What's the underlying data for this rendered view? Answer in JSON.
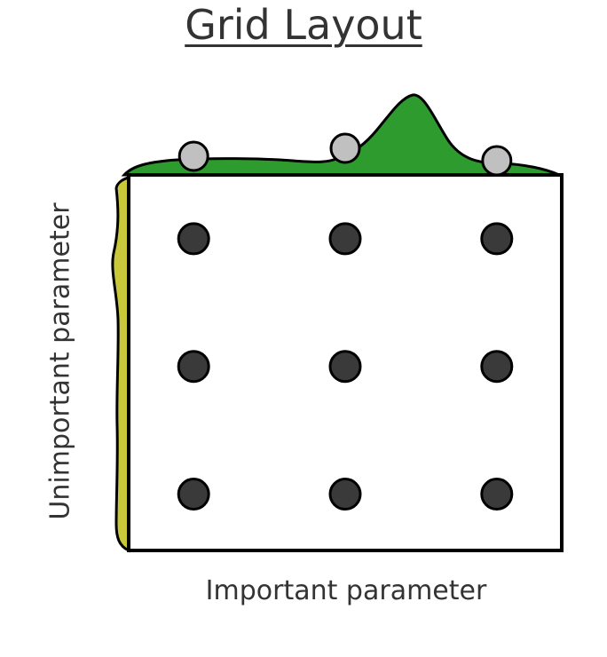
{
  "title": "Grid Layout",
  "x_axis_label": "Important parameter",
  "y_axis_label": "Unimportant parameter",
  "colors": {
    "important_density": "#2e9b2e",
    "unimportant_density": "#c8c83a",
    "grid_point": "#3a3a3a",
    "projected_point": "#c0c0c0",
    "outline": "#000000"
  },
  "grid": {
    "columns": 3,
    "rows": 3,
    "x_positions": [
      0.15,
      0.5,
      0.85
    ],
    "y_positions": [
      0.17,
      0.51,
      0.85
    ]
  }
}
